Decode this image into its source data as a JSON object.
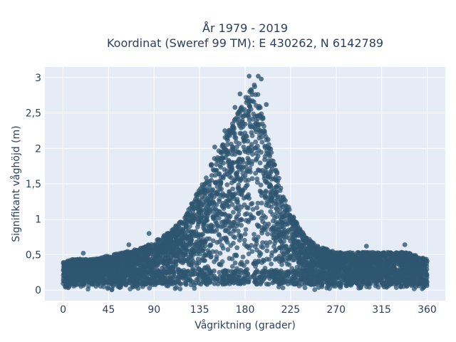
{
  "chart_data": {
    "type": "scatter",
    "title_line1": "År 1979 - 2019",
    "title_line2": "Koordinat (Sweref 99 TM): E 430262, N 6142789",
    "xlabel": "Vågriktning (grader)",
    "ylabel": "Signifikant våghöjd (m)",
    "xlim": [
      -18,
      378
    ],
    "ylim": [
      -0.15,
      3.15
    ],
    "x_ticks": [
      0,
      45,
      90,
      135,
      180,
      225,
      270,
      315,
      360
    ],
    "x_tick_labels": [
      "0",
      "45",
      "90",
      "135",
      "180",
      "225",
      "270",
      "315",
      "360"
    ],
    "y_ticks": [
      0,
      0.5,
      1,
      1.5,
      2,
      2.5,
      3
    ],
    "y_tick_labels": [
      "0",
      "0,5",
      "1",
      "1,5",
      "2",
      "2,5",
      "3"
    ],
    "grid": true,
    "colors": {
      "marker": "#2f5670",
      "plot_bg": "#e5ecf6",
      "grid": "#ffffff",
      "text": "#2a3f5f"
    },
    "envelope": {
      "direction": [
        0,
        10,
        30,
        45,
        60,
        75,
        90,
        105,
        120,
        130,
        140,
        150,
        160,
        170,
        180,
        185,
        190,
        195,
        200,
        210,
        220,
        230,
        240,
        250,
        260,
        270,
        280,
        300,
        320,
        340,
        360
      ],
      "max_height": [
        0.4,
        0.45,
        0.45,
        0.5,
        0.55,
        0.6,
        0.7,
        0.85,
        1.05,
        1.35,
        1.6,
        1.95,
        2.25,
        2.5,
        2.8,
        2.95,
        3.0,
        2.75,
        2.35,
        1.8,
        1.3,
        1.0,
        0.8,
        0.65,
        0.6,
        0.55,
        0.55,
        0.55,
        0.55,
        0.55,
        0.45
      ]
    },
    "outliers": [
      {
        "x": 184,
        "y": 3.02
      },
      {
        "x": 193,
        "y": 3.02
      },
      {
        "x": 196,
        "y": 2.98
      },
      {
        "x": 175,
        "y": 2.77
      },
      {
        "x": 170,
        "y": 2.58
      },
      {
        "x": 201,
        "y": 2.62
      },
      {
        "x": 160,
        "y": 2.25
      },
      {
        "x": 150,
        "y": 2.02
      },
      {
        "x": 85,
        "y": 0.8
      },
      {
        "x": 300,
        "y": 0.62
      },
      {
        "x": 338,
        "y": 0.64
      },
      {
        "x": 20,
        "y": 0.52
      },
      {
        "x": 65,
        "y": 0.64
      }
    ]
  }
}
